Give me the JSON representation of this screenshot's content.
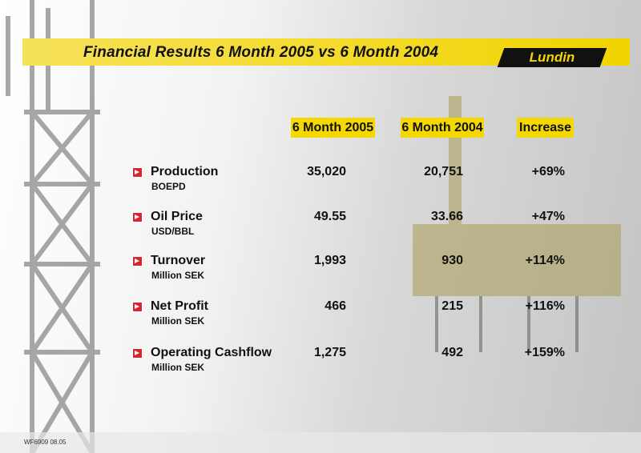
{
  "header": {
    "title": "Financial Results 6 Month 2005 vs 6 Month 2004",
    "logo": "Lundin"
  },
  "table": {
    "columns": [
      "6 Month 2005",
      "6 Month 2004",
      "Increase"
    ],
    "rows": [
      {
        "label": "Production",
        "unit": "BOEPD",
        "values": [
          "35,020",
          "20,751",
          "+69%"
        ]
      },
      {
        "label": "Oil Price",
        "unit": "USD/BBL",
        "values": [
          "49.55",
          "33.66",
          "+47%"
        ]
      },
      {
        "label": "Turnover",
        "unit": "Million SEK",
        "values": [
          "1,993",
          "930",
          "+114%"
        ]
      },
      {
        "label": "Net Profit",
        "unit": "Million  SEK",
        "values": [
          "466",
          "215",
          "+116%"
        ]
      },
      {
        "label": "Operating Cashflow",
        "unit": "Million  SEK",
        "values": [
          "1,275",
          "492",
          "+159%"
        ]
      }
    ]
  },
  "footer": {
    "code": "WF6909 08.05"
  }
}
